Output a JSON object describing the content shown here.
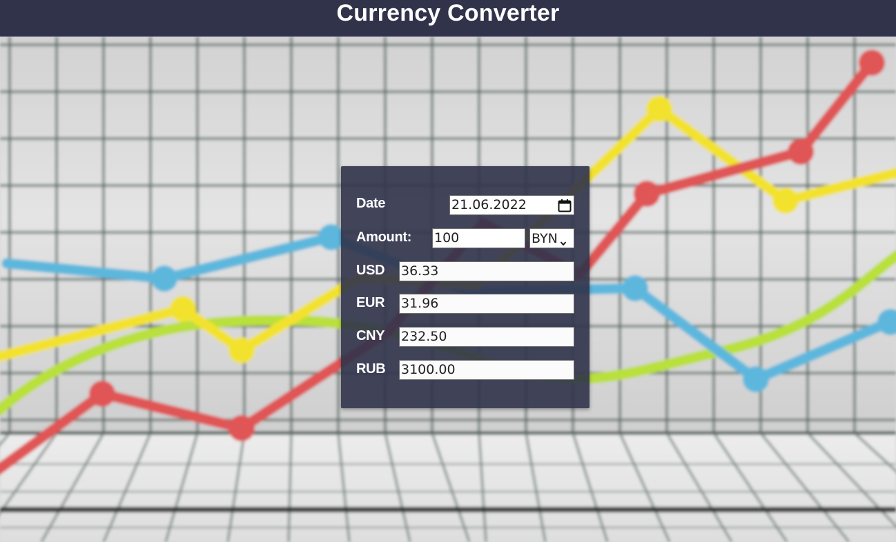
{
  "header": {
    "title": "Currency Converter"
  },
  "form": {
    "date_label": "Date",
    "date_value": "21.06.2022",
    "amount_label": "Amount:",
    "amount_value": "100",
    "currency_selected": "BYN",
    "rows": [
      {
        "code": "USD",
        "value": "36.33"
      },
      {
        "code": "EUR",
        "value": "31.96"
      },
      {
        "code": "CNY",
        "value": "232.50"
      },
      {
        "code": "RUB",
        "value": "3100.00"
      }
    ]
  },
  "icons": {
    "date_picker": "calendar-icon",
    "select_arrow": "chevron-down-icon"
  },
  "colors": {
    "header_bg": "#30334a",
    "panel_bg": "#30334a",
    "line_red": "#e05555",
    "line_yellow": "#f2e22e",
    "line_blue": "#5db7dd",
    "line_green": "#b9e03a"
  }
}
